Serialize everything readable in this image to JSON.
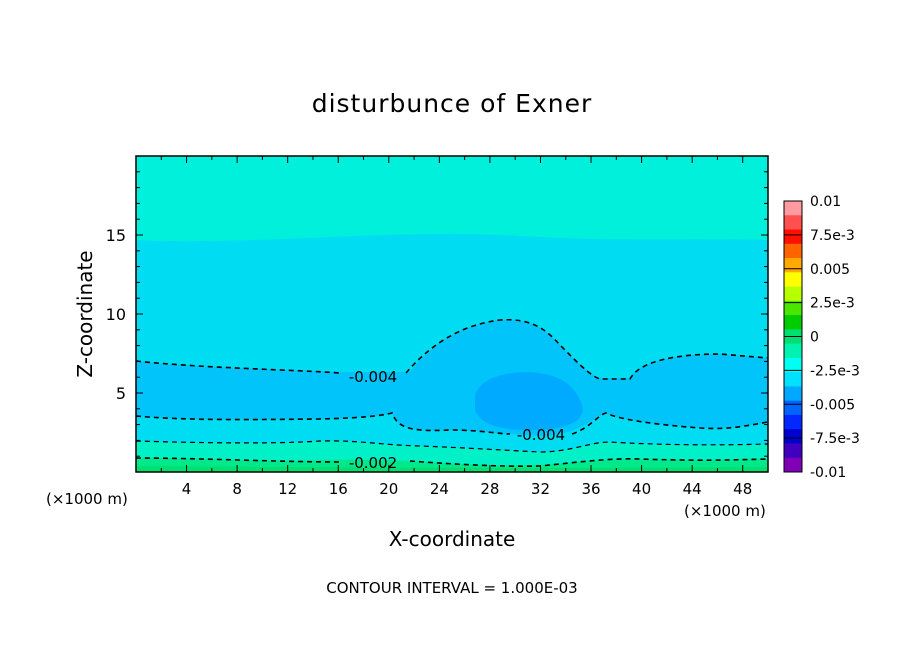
{
  "chart_data": {
    "type": "heatmap",
    "subtype": "filled-contour",
    "title": "disturbunce of Exner",
    "xlabel": "X-coordinate",
    "ylabel": "Z-coordinate",
    "x_unit": "(×1000 m)",
    "x_unit_right": "(×1000 m)",
    "footer": "CONTOUR INTERVAL = 1.000E-03",
    "xlim": [
      0,
      50
    ],
    "ylim": [
      0,
      20
    ],
    "x_ticks": [
      4,
      8,
      12,
      16,
      20,
      24,
      28,
      32,
      36,
      40,
      44,
      48
    ],
    "x_tick_labels": [
      "4",
      "8",
      "12",
      "16",
      "20",
      "24",
      "28",
      "32",
      "36",
      "40",
      "44",
      "48"
    ],
    "y_ticks": [
      5,
      10,
      15
    ],
    "y_tick_labels": [
      "5",
      "10",
      "15"
    ],
    "colorbar": {
      "range": [
        -0.01,
        0.01
      ],
      "labels": [
        "0.01",
        "7.5e-3",
        "0.005",
        "2.5e-3",
        "0",
        "-2.5e-3",
        "-0.005",
        "-7.5e-3",
        "-0.01"
      ],
      "colors_top_to_bottom": [
        "#ff9aa0",
        "#ff5050",
        "#ff1000",
        "#ff6400",
        "#ffaa00",
        "#ffff00",
        "#b8ff00",
        "#48e600",
        "#00cc00",
        "#00e070",
        "#00f2b0",
        "#00fff0",
        "#00e0ff",
        "#00a8ff",
        "#0064ff",
        "#0028ff",
        "#0000d0",
        "#4000c0",
        "#8000b8"
      ]
    },
    "contour_labels": [
      {
        "text": "-0.004",
        "x": 19.3,
        "z": 6.1
      },
      {
        "text": "-0.004",
        "x": 31.5,
        "z": 2.4
      },
      {
        "text": "-0.002",
        "x": 19.3,
        "z": 0.6
      }
    ]
  }
}
